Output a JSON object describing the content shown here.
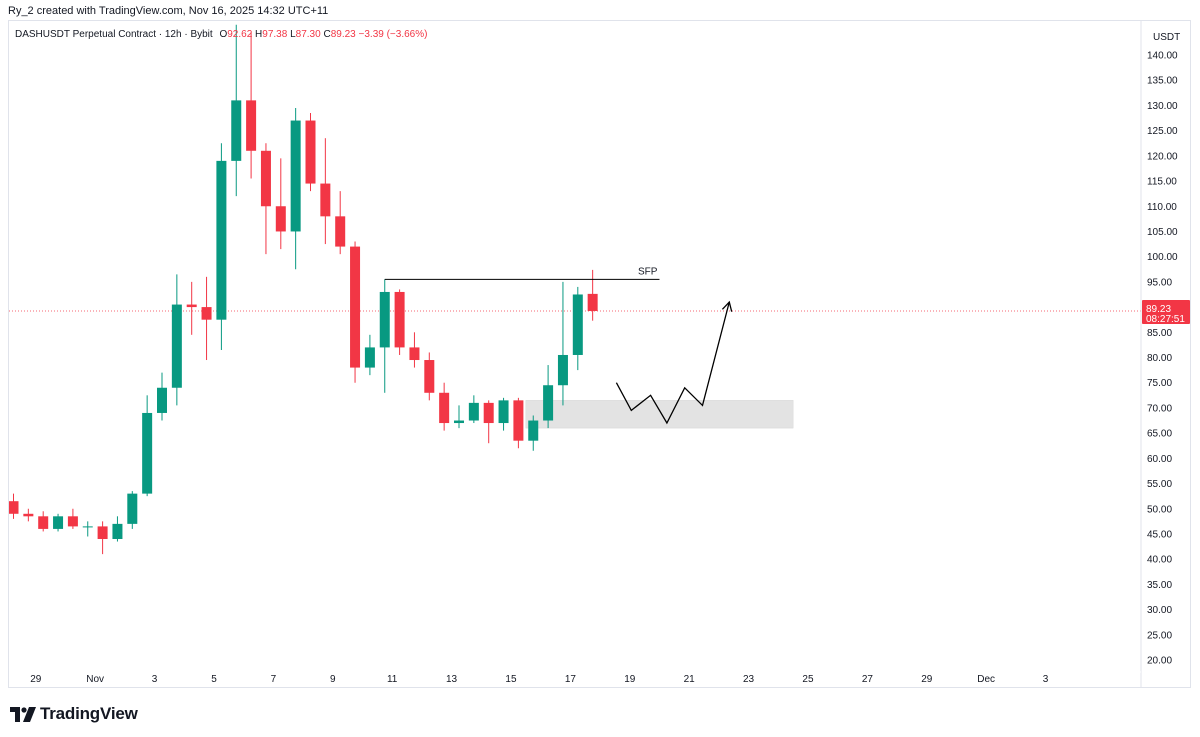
{
  "header": {
    "credit": "Ry_2 created with TradingView.com, Nov 16, 2025 14:32 UTC+11"
  },
  "legend": {
    "symbol": "DASHUSDT Perpetual Contract · 12h · Bybit",
    "o_label": "O",
    "o_value": "92.62",
    "h_label": "H",
    "h_value": "97.38",
    "l_label": "L",
    "l_value": "87.30",
    "c_label": "C",
    "c_value": "89.23",
    "change": "−3.39 (−3.66%)"
  },
  "price_axis": {
    "currency": "USDT",
    "current_price": "89.23",
    "countdown": "08:27:51"
  },
  "footer": {
    "brand": "TradingView",
    "logo_icon": "tradingview-logo-icon"
  },
  "colors": {
    "up": "#089981",
    "down": "#f23645",
    "zone": "#e3e3e3",
    "drawing": "#000000",
    "current_price_line": "#f23645"
  },
  "chart_data": {
    "type": "candlestick",
    "interval": "12h",
    "ylim": [
      17.5,
      145
    ],
    "yticks": [
      20,
      25,
      30,
      35,
      40,
      45,
      50,
      55,
      60,
      65,
      70,
      75,
      80,
      85,
      90,
      95,
      100,
      105,
      110,
      115,
      120,
      125,
      130,
      135,
      140
    ],
    "xticks": [
      {
        "label": "29",
        "i": 1.5
      },
      {
        "label": "Nov",
        "i": 5.5
      },
      {
        "label": "3",
        "i": 9.5
      },
      {
        "label": "5",
        "i": 13.5
      },
      {
        "label": "7",
        "i": 17.5
      },
      {
        "label": "9",
        "i": 21.5
      },
      {
        "label": "11",
        "i": 25.5
      },
      {
        "label": "13",
        "i": 29.5
      },
      {
        "label": "15",
        "i": 33.5
      },
      {
        "label": "17",
        "i": 37.5
      },
      {
        "label": "19",
        "i": 41.5
      },
      {
        "label": "21",
        "i": 45.5
      },
      {
        "label": "23",
        "i": 49.5
      },
      {
        "label": "25",
        "i": 53.5
      },
      {
        "label": "27",
        "i": 57.5
      },
      {
        "label": "29",
        "i": 61.5
      },
      {
        "label": "Dec",
        "i": 65.5
      },
      {
        "label": "3",
        "i": 69.5
      }
    ],
    "candles": [
      {
        "o": 51.5,
        "h": 53.0,
        "l": 48.0,
        "c": 49.0
      },
      {
        "o": 49.0,
        "h": 50.0,
        "l": 47.5,
        "c": 48.5
      },
      {
        "o": 48.5,
        "h": 49.5,
        "l": 45.5,
        "c": 46.0
      },
      {
        "o": 46.0,
        "h": 49.0,
        "l": 45.5,
        "c": 48.5
      },
      {
        "o": 48.5,
        "h": 50.0,
        "l": 46.0,
        "c": 46.5
      },
      {
        "o": 46.5,
        "h": 47.5,
        "l": 44.5,
        "c": 46.5
      },
      {
        "o": 46.5,
        "h": 47.5,
        "l": 41.0,
        "c": 44.0
      },
      {
        "o": 44.0,
        "h": 48.5,
        "l": 43.5,
        "c": 47.0
      },
      {
        "o": 47.0,
        "h": 53.5,
        "l": 46.0,
        "c": 53.0
      },
      {
        "o": 53.0,
        "h": 72.5,
        "l": 52.5,
        "c": 69.0
      },
      {
        "o": 69.0,
        "h": 77.0,
        "l": 67.5,
        "c": 74.0
      },
      {
        "o": 74.0,
        "h": 96.5,
        "l": 70.5,
        "c": 90.5
      },
      {
        "o": 90.5,
        "h": 95.0,
        "l": 84.5,
        "c": 90.0
      },
      {
        "o": 90.0,
        "h": 96.0,
        "l": 79.5,
        "c": 87.5
      },
      {
        "o": 87.5,
        "h": 122.5,
        "l": 81.5,
        "c": 119.0
      },
      {
        "o": 119.0,
        "h": 146.0,
        "l": 112.0,
        "c": 131.0
      },
      {
        "o": 131.0,
        "h": 144.5,
        "l": 115.5,
        "c": 121.0
      },
      {
        "o": 121.0,
        "h": 122.5,
        "l": 100.5,
        "c": 110.0
      },
      {
        "o": 110.0,
        "h": 119.5,
        "l": 101.5,
        "c": 105.0
      },
      {
        "o": 105.0,
        "h": 129.5,
        "l": 97.5,
        "c": 127.0
      },
      {
        "o": 127.0,
        "h": 128.5,
        "l": 113.0,
        "c": 114.5
      },
      {
        "o": 114.5,
        "h": 123.5,
        "l": 102.5,
        "c": 108.0
      },
      {
        "o": 108.0,
        "h": 113.0,
        "l": 100.5,
        "c": 102.0
      },
      {
        "o": 102.0,
        "h": 103.0,
        "l": 75.0,
        "c": 78.0
      },
      {
        "o": 78.0,
        "h": 84.5,
        "l": 76.5,
        "c": 82.0
      },
      {
        "o": 82.0,
        "h": 95.5,
        "l": 73.0,
        "c": 93.0
      },
      {
        "o": 93.0,
        "h": 93.5,
        "l": 80.5,
        "c": 82.0
      },
      {
        "o": 82.0,
        "h": 85.0,
        "l": 78.0,
        "c": 79.5
      },
      {
        "o": 79.5,
        "h": 81.0,
        "l": 71.5,
        "c": 73.0
      },
      {
        "o": 73.0,
        "h": 75.0,
        "l": 65.5,
        "c": 67.0
      },
      {
        "o": 67.0,
        "h": 70.5,
        "l": 66.0,
        "c": 67.5
      },
      {
        "o": 67.5,
        "h": 72.5,
        "l": 67.0,
        "c": 71.0
      },
      {
        "o": 71.0,
        "h": 71.5,
        "l": 63.0,
        "c": 67.0
      },
      {
        "o": 67.0,
        "h": 72.0,
        "l": 65.5,
        "c": 71.5
      },
      {
        "o": 71.5,
        "h": 72.0,
        "l": 62.0,
        "c": 63.5
      },
      {
        "o": 63.5,
        "h": 68.5,
        "l": 61.5,
        "c": 67.5
      },
      {
        "o": 67.5,
        "h": 78.5,
        "l": 66.0,
        "c": 74.5
      },
      {
        "o": 74.5,
        "h": 95.0,
        "l": 70.5,
        "c": 80.5
      },
      {
        "o": 80.5,
        "h": 94.0,
        "l": 77.5,
        "c": 92.5
      },
      {
        "o": 92.62,
        "h": 97.38,
        "l": 87.3,
        "c": 89.23
      }
    ],
    "current_price": 89.23,
    "annotations": {
      "sfp": {
        "label": "SFP",
        "price": 95.5,
        "from_i": 25,
        "to_i": 43.5
      },
      "zone": {
        "from_i": 34.5,
        "to_i": 52.5,
        "top": 71.5,
        "bottom": 66.0
      },
      "path": [
        {
          "i": 40.6,
          "p": 75.0
        },
        {
          "i": 41.6,
          "p": 69.5
        },
        {
          "i": 42.9,
          "p": 72.5
        },
        {
          "i": 44.0,
          "p": 67.0
        },
        {
          "i": 45.2,
          "p": 74.0
        },
        {
          "i": 46.4,
          "p": 70.5
        },
        {
          "i": 48.2,
          "p": 91.0
        }
      ]
    }
  }
}
